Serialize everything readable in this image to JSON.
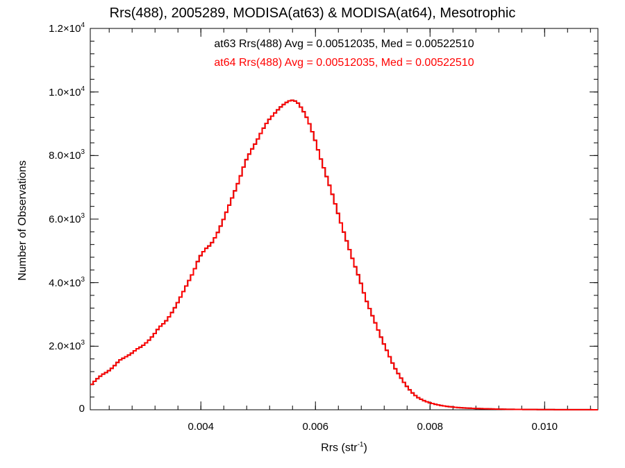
{
  "chart_data": {
    "type": "line",
    "title": "Rrs(488), 2005289, MODISA(at63) & MODISA(at64), Mesotrophic",
    "xlabel_base": "Rrs (str",
    "xlabel_exp": "-1",
    "xlabel_close": ")",
    "ylabel": "Number of Observations",
    "xlim": [
      0.00207,
      0.01093
    ],
    "ylim": [
      0,
      12000
    ],
    "xticks": [
      {
        "value": 0.004,
        "label": "0.004"
      },
      {
        "value": 0.006,
        "label": "0.006"
      },
      {
        "value": 0.008,
        "label": "0.008"
      },
      {
        "value": 0.01,
        "label": "0.010"
      }
    ],
    "yticks": [
      {
        "value": 0,
        "mant": "0",
        "exp": ""
      },
      {
        "value": 2000,
        "mant": "2.0×10",
        "exp": "3"
      },
      {
        "value": 4000,
        "mant": "4.0×10",
        "exp": "3"
      },
      {
        "value": 6000,
        "mant": "6.0×10",
        "exp": "3"
      },
      {
        "value": 8000,
        "mant": "8.0×10",
        "exp": "3"
      },
      {
        "value": 10000,
        "mant": "1.0×10",
        "exp": "4"
      },
      {
        "value": 12000,
        "mant": "1.2×10",
        "exp": "4"
      }
    ],
    "annotations": [
      "at63 Rrs(488) Avg = 0.00512035, Med = 0.00522510",
      "at64 Rrs(488) Avg = 0.00512035, Med = 0.00522510"
    ],
    "bin_width": 5e-05,
    "series": [
      {
        "name": "at63",
        "color": "#000000",
        "x": [
          0.00207,
          0.00215,
          0.00225,
          0.00235,
          0.00245,
          0.00255,
          0.00265,
          0.00275,
          0.00285,
          0.00295,
          0.00305,
          0.00315,
          0.00325,
          0.00335,
          0.00345,
          0.00355,
          0.00365,
          0.00375,
          0.00385,
          0.00395,
          0.00405,
          0.00415,
          0.00425,
          0.00435,
          0.00445,
          0.00455,
          0.00465,
          0.00475,
          0.00485,
          0.00495,
          0.00505,
          0.00515,
          0.00525,
          0.00535,
          0.00545,
          0.00555,
          0.00565,
          0.00575,
          0.00585,
          0.00595,
          0.00605,
          0.00615,
          0.00625,
          0.00635,
          0.00645,
          0.00655,
          0.00665,
          0.00675,
          0.00685,
          0.00695,
          0.00705,
          0.00715,
          0.00725,
          0.00735,
          0.00745,
          0.00755,
          0.00765,
          0.00775,
          0.00785,
          0.00795,
          0.00805,
          0.00815,
          0.00825,
          0.00835,
          0.00845,
          0.00855,
          0.00865,
          0.00875,
          0.00885,
          0.00895,
          0.00905,
          0.00915,
          0.00925,
          0.00935,
          0.00945,
          0.00955,
          0.00965,
          0.00975,
          0.00985,
          0.00995,
          0.01005,
          0.01015,
          0.01025,
          0.01035,
          0.01045,
          0.01055,
          0.01065,
          0.01075,
          0.01085,
          0.01093
        ],
        "y": [
          800,
          950,
          1100,
          1200,
          1350,
          1550,
          1650,
          1750,
          1900,
          2000,
          2150,
          2350,
          2600,
          2750,
          3000,
          3300,
          3650,
          4000,
          4350,
          4800,
          5050,
          5200,
          5500,
          5900,
          6350,
          6800,
          7250,
          7800,
          8150,
          8450,
          8800,
          9100,
          9300,
          9500,
          9650,
          9750,
          9700,
          9450,
          9100,
          8600,
          8000,
          7450,
          6900,
          6300,
          5700,
          5150,
          4600,
          4100,
          3500,
          3050,
          2600,
          2150,
          1750,
          1350,
          1050,
          780,
          560,
          400,
          300,
          230,
          180,
          140,
          110,
          90,
          70,
          60,
          50,
          42,
          36,
          30,
          25,
          20,
          17,
          14,
          12,
          10,
          9,
          8,
          7,
          6,
          5,
          4,
          4,
          3,
          3,
          2,
          2,
          2,
          1,
          1
        ]
      },
      {
        "name": "at64",
        "color": "#ff0000",
        "x": [
          0.00207,
          0.00215,
          0.00225,
          0.00235,
          0.00245,
          0.00255,
          0.00265,
          0.00275,
          0.00285,
          0.00295,
          0.00305,
          0.00315,
          0.00325,
          0.00335,
          0.00345,
          0.00355,
          0.00365,
          0.00375,
          0.00385,
          0.00395,
          0.00405,
          0.00415,
          0.00425,
          0.00435,
          0.00445,
          0.00455,
          0.00465,
          0.00475,
          0.00485,
          0.00495,
          0.00505,
          0.00515,
          0.00525,
          0.00535,
          0.00545,
          0.00555,
          0.00565,
          0.00575,
          0.00585,
          0.00595,
          0.00605,
          0.00615,
          0.00625,
          0.00635,
          0.00645,
          0.00655,
          0.00665,
          0.00675,
          0.00685,
          0.00695,
          0.00705,
          0.00715,
          0.00725,
          0.00735,
          0.00745,
          0.00755,
          0.00765,
          0.00775,
          0.00785,
          0.00795,
          0.00805,
          0.00815,
          0.00825,
          0.00835,
          0.00845,
          0.00855,
          0.00865,
          0.00875,
          0.00885,
          0.00895,
          0.00905,
          0.00915,
          0.00925,
          0.00935,
          0.00945,
          0.00955,
          0.00965,
          0.00975,
          0.00985,
          0.00995,
          0.01005,
          0.01015,
          0.01025,
          0.01035,
          0.01045,
          0.01055,
          0.01065,
          0.01075,
          0.01085,
          0.01093
        ],
        "y": [
          800,
          950,
          1100,
          1200,
          1350,
          1550,
          1650,
          1750,
          1900,
          2000,
          2150,
          2350,
          2600,
          2750,
          3000,
          3300,
          3650,
          4000,
          4350,
          4800,
          5050,
          5200,
          5500,
          5900,
          6350,
          6800,
          7250,
          7800,
          8150,
          8450,
          8800,
          9100,
          9300,
          9500,
          9650,
          9750,
          9700,
          9450,
          9100,
          8600,
          8000,
          7450,
          6900,
          6300,
          5700,
          5150,
          4600,
          4100,
          3500,
          3050,
          2600,
          2150,
          1750,
          1350,
          1050,
          780,
          560,
          400,
          300,
          230,
          180,
          140,
          110,
          90,
          70,
          60,
          50,
          42,
          36,
          30,
          25,
          20,
          17,
          14,
          12,
          10,
          9,
          8,
          7,
          6,
          5,
          4,
          4,
          3,
          3,
          2,
          2,
          2,
          1,
          1
        ]
      }
    ],
    "grid": false,
    "legend": "none"
  }
}
